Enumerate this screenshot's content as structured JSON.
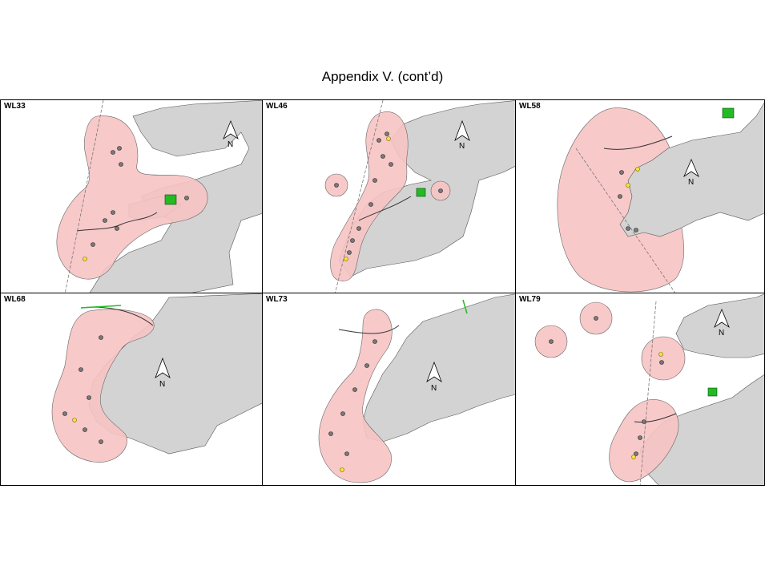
{
  "page": {
    "title": "Appendix V.  (cont’d)"
  },
  "colors": {
    "land": "#d3d3d3",
    "home_range": "#f7c3c3",
    "location_point": "#7a7a7a",
    "capture_point": "#f5e633",
    "protected_area": "#22bb22",
    "boundary_line": "#777777",
    "track_line": "#333333"
  },
  "panels": [
    {
      "id": "WL33",
      "north_label": "N"
    },
    {
      "id": "WL46",
      "north_label": "N"
    },
    {
      "id": "WL58",
      "north_label": "N"
    },
    {
      "id": "WL68",
      "north_label": "N"
    },
    {
      "id": "WL73",
      "north_label": "N"
    },
    {
      "id": "WL79",
      "north_label": "N"
    }
  ]
}
